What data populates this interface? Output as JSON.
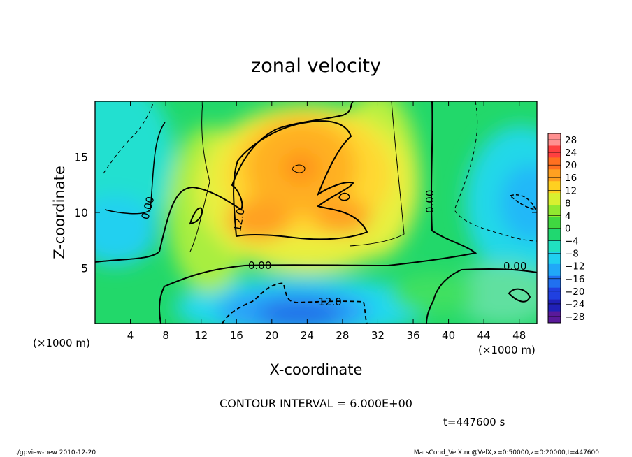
{
  "chart_data": {
    "type": "contour",
    "title": "zonal velocity",
    "xlabel": "X-coordinate",
    "ylabel": "Z-coordinate",
    "x_unit_note": "(×1000 m)",
    "y_unit_note": "(×1000 m)",
    "xlim": [
      0,
      50
    ],
    "ylim": [
      0,
      20
    ],
    "x_ticks": [
      4,
      8,
      12,
      16,
      20,
      24,
      28,
      32,
      36,
      40,
      44,
      48
    ],
    "y_ticks": [
      5,
      10,
      15
    ],
    "contour_interval_text": "CONTOUR INTERVAL = 6.000E+00",
    "time_text": "t=447600 s",
    "contour_labels": [
      "0.00",
      "0.00",
      "0.00",
      "0.00",
      "12.0",
      "-12.0"
    ],
    "colorbar": {
      "ticks": [
        28,
        24,
        20,
        16,
        12,
        8,
        4,
        0,
        -4,
        -8,
        -12,
        -16,
        -20,
        -24,
        -28
      ],
      "tick_labels": [
        "28",
        "24",
        "20",
        "16",
        "12",
        "8",
        "4",
        "0",
        "−4",
        "−8",
        "−12",
        "−16",
        "−20",
        "−24",
        "−28"
      ],
      "min": -30,
      "max": 30
    },
    "field_features": [
      {
        "description": "max",
        "x": 23,
        "z": 14,
        "value": 19
      },
      {
        "description": "min",
        "x": 22,
        "z": 1.5,
        "value": -18
      }
    ]
  },
  "footer": {
    "left": "./gpview-new   2010-12-20",
    "right": "MarsCond_VelX.nc@VelX,x=0:50000,z=0:20000,t=447600"
  }
}
